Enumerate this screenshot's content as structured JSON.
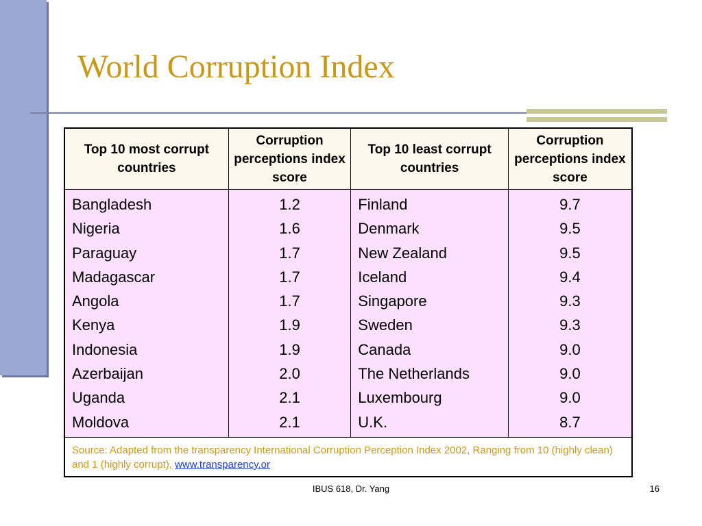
{
  "title": "World Corruption Index",
  "table": {
    "headers": [
      "Top 10 most corrupt countries",
      "Corruption perceptions index score",
      "Top 10 least corrupt countries",
      "Corruption perceptions index score"
    ],
    "most_corrupt": {
      "countries": [
        "Bangladesh",
        "Nigeria",
        "Paraguay",
        "Madagascar",
        "Angola",
        "Kenya",
        "Indonesia",
        "Azerbaijan",
        "Uganda",
        "Moldova"
      ],
      "scores": [
        "1.2",
        "1.6",
        "1.7",
        "1.7",
        "1.7",
        "1.9",
        "1.9",
        "2.0",
        "2.1",
        "2.1"
      ]
    },
    "least_corrupt": {
      "countries": [
        "Finland",
        "Denmark",
        "New Zealand",
        "Iceland",
        "Singapore",
        "Sweden",
        "Canada",
        "The Netherlands",
        "Luxembourg",
        "U.K."
      ],
      "scores": [
        "9.7",
        "9.5",
        "9.5",
        "9.4",
        "9.3",
        "9.3",
        "9.0",
        "9.0",
        "9.0",
        "8.7"
      ]
    },
    "source_text": "Source: Adapted from the transparency International Corruption Perception Index 2002, Ranging from 10 (highly clean) and 1 (highly corrupt), ",
    "source_link": "www.transparency.or"
  },
  "footer": {
    "course": "IBUS 618, Dr. Yang",
    "page": "16"
  },
  "colors": {
    "title": "#c9981a",
    "side_bar": "#9ba8d4",
    "header_bg": "#fdf8ee",
    "body_bg": "#fde0fd",
    "link": "#1f3ad1"
  }
}
